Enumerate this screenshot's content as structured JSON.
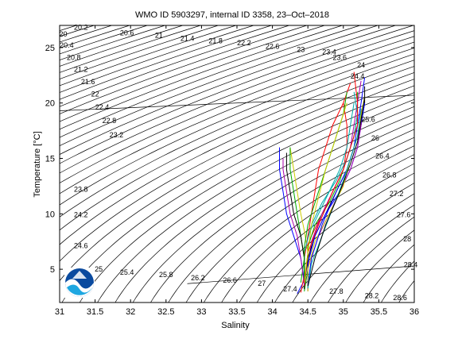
{
  "chart_data": {
    "type": "line",
    "title": "WMO ID 5903297, internal ID 3358, 23–Oct–2018",
    "xlabel": "Salinity",
    "ylabel": "Temperature [°C]",
    "xlim": [
      31,
      36
    ],
    "ylim": [
      2,
      27
    ],
    "xticks": [
      "31",
      "31.5",
      "32",
      "32.5",
      "33",
      "33.5",
      "34",
      "34.5",
      "35",
      "35.5",
      "36"
    ],
    "yticks": [
      "5",
      "10",
      "15",
      "20",
      "25"
    ],
    "grid": false,
    "density_contour_labels": [
      {
        "text": "20",
        "s": 31.05,
        "t": 26.0
      },
      {
        "text": "20.2",
        "s": 31.3,
        "t": 26.6
      },
      {
        "text": "20.6",
        "s": 31.95,
        "t": 26.1
      },
      {
        "text": "21",
        "s": 32.4,
        "t": 25.9
      },
      {
        "text": "21.4",
        "s": 32.8,
        "t": 25.6
      },
      {
        "text": "21.8",
        "s": 33.2,
        "t": 25.4
      },
      {
        "text": "22.2",
        "s": 33.6,
        "t": 25.2
      },
      {
        "text": "22.6",
        "s": 34.0,
        "t": 24.9
      },
      {
        "text": "23",
        "s": 34.4,
        "t": 24.6
      },
      {
        "text": "23.4",
        "s": 34.8,
        "t": 24.4
      },
      {
        "text": "23.6",
        "s": 34.95,
        "t": 23.9
      },
      {
        "text": "24",
        "s": 35.25,
        "t": 23.2
      },
      {
        "text": "24.4",
        "s": 35.2,
        "t": 22.2
      },
      {
        "text": "20.4",
        "s": 31.1,
        "t": 25.0
      },
      {
        "text": "20.8",
        "s": 31.2,
        "t": 23.9
      },
      {
        "text": "21.2",
        "s": 31.3,
        "t": 22.8
      },
      {
        "text": "21.6",
        "s": 31.4,
        "t": 21.7
      },
      {
        "text": "22",
        "s": 31.5,
        "t": 20.6
      },
      {
        "text": "22.4",
        "s": 31.6,
        "t": 19.4
      },
      {
        "text": "22.8",
        "s": 31.7,
        "t": 18.2
      },
      {
        "text": "23.2",
        "s": 31.8,
        "t": 16.9
      },
      {
        "text": "23.8",
        "s": 31.3,
        "t": 12.0
      },
      {
        "text": "24.2",
        "s": 31.3,
        "t": 9.7
      },
      {
        "text": "24.6",
        "s": 31.3,
        "t": 6.9
      },
      {
        "text": "25",
        "s": 31.55,
        "t": 4.8
      },
      {
        "text": "25.4",
        "s": 31.95,
        "t": 4.5
      },
      {
        "text": "25.8",
        "s": 32.5,
        "t": 4.3
      },
      {
        "text": "26.2",
        "s": 32.95,
        "t": 4.0
      },
      {
        "text": "26.6",
        "s": 33.4,
        "t": 3.8
      },
      {
        "text": "27",
        "s": 33.85,
        "t": 3.5
      },
      {
        "text": "27.4",
        "s": 34.25,
        "t": 3.0
      },
      {
        "text": "27.8",
        "s": 34.9,
        "t": 2.8
      },
      {
        "text": "28.2",
        "s": 35.4,
        "t": 2.4
      },
      {
        "text": "28.6",
        "s": 35.8,
        "t": 2.2
      },
      {
        "text": "25.6",
        "s": 35.35,
        "t": 18.3
      },
      {
        "text": "26",
        "s": 35.45,
        "t": 16.6
      },
      {
        "text": "26.4",
        "s": 35.55,
        "t": 15.0
      },
      {
        "text": "26.8",
        "s": 35.65,
        "t": 13.3
      },
      {
        "text": "27.2",
        "s": 35.75,
        "t": 11.6
      },
      {
        "text": "27.6",
        "s": 35.85,
        "t": 9.7
      },
      {
        "text": "28",
        "s": 35.9,
        "t": 7.5
      },
      {
        "text": "28.4",
        "s": 35.95,
        "t": 5.2
      }
    ],
    "series": [
      {
        "color": "#0000ff",
        "points": [
          [
            34.35,
            2.8
          ],
          [
            34.45,
            4
          ],
          [
            34.4,
            6
          ],
          [
            34.3,
            8
          ],
          [
            34.2,
            10
          ],
          [
            34.15,
            12
          ],
          [
            34.1,
            14
          ],
          [
            34.1,
            16
          ]
        ]
      },
      {
        "color": "#ff0000",
        "points": [
          [
            34.4,
            2.9
          ],
          [
            34.45,
            4.5
          ],
          [
            34.45,
            6.5
          ],
          [
            34.55,
            8
          ],
          [
            34.7,
            10
          ],
          [
            34.85,
            12
          ],
          [
            35.0,
            14
          ],
          [
            35.05,
            16
          ],
          [
            35.05,
            18
          ],
          [
            35.0,
            20
          ]
        ]
      },
      {
        "color": "#00aa00",
        "points": [
          [
            34.45,
            3
          ],
          [
            34.5,
            5
          ],
          [
            34.5,
            7
          ],
          [
            34.6,
            9
          ],
          [
            34.8,
            11
          ],
          [
            34.95,
            13
          ],
          [
            35.05,
            15
          ],
          [
            35.15,
            17
          ],
          [
            35.2,
            19
          ],
          [
            35.2,
            21
          ]
        ]
      },
      {
        "color": "#aa00aa",
        "points": [
          [
            34.5,
            3
          ],
          [
            34.5,
            5
          ],
          [
            34.55,
            7.5
          ],
          [
            34.7,
            10
          ],
          [
            34.85,
            12
          ],
          [
            35.0,
            14
          ],
          [
            35.1,
            16
          ],
          [
            35.15,
            18
          ],
          [
            35.2,
            20
          ],
          [
            35.25,
            22
          ]
        ]
      },
      {
        "color": "#00aaaa",
        "points": [
          [
            34.45,
            3.5
          ],
          [
            34.45,
            6
          ],
          [
            34.5,
            8
          ],
          [
            34.65,
            10
          ],
          [
            34.8,
            12
          ],
          [
            34.95,
            14
          ],
          [
            35.05,
            16
          ],
          [
            35.1,
            18
          ],
          [
            35.15,
            20
          ]
        ]
      },
      {
        "color": "#cccc00",
        "points": [
          [
            34.45,
            4
          ],
          [
            34.5,
            6.5
          ],
          [
            34.45,
            8.5
          ],
          [
            34.4,
            10
          ],
          [
            34.35,
            12
          ],
          [
            34.3,
            14
          ],
          [
            34.25,
            16
          ]
        ]
      },
      {
        "color": "#000000",
        "points": [
          [
            34.45,
            3.5
          ],
          [
            34.5,
            6
          ],
          [
            34.6,
            8
          ],
          [
            34.75,
            10
          ],
          [
            34.9,
            12
          ],
          [
            35.05,
            14
          ],
          [
            35.15,
            16
          ],
          [
            35.25,
            18
          ],
          [
            35.3,
            20
          ],
          [
            35.3,
            21.5
          ]
        ]
      },
      {
        "color": "#0000ff",
        "points": [
          [
            34.5,
            3.2
          ],
          [
            34.5,
            5.5
          ],
          [
            34.6,
            8
          ],
          [
            34.75,
            10
          ],
          [
            34.95,
            12
          ],
          [
            35.1,
            14
          ],
          [
            35.2,
            16
          ],
          [
            35.25,
            18
          ],
          [
            35.3,
            20
          ]
        ]
      },
      {
        "color": "#ff0000",
        "points": [
          [
            34.45,
            3.5
          ],
          [
            34.45,
            6
          ],
          [
            34.5,
            8
          ],
          [
            34.55,
            10
          ],
          [
            34.6,
            12
          ],
          [
            34.65,
            14
          ],
          [
            34.75,
            16
          ],
          [
            34.85,
            18
          ],
          [
            35.0,
            20
          ],
          [
            35.1,
            21.8
          ]
        ]
      },
      {
        "color": "#00aa00",
        "points": [
          [
            34.4,
            3.8
          ],
          [
            34.45,
            6
          ],
          [
            34.4,
            8
          ],
          [
            34.35,
            10
          ],
          [
            34.3,
            12
          ],
          [
            34.25,
            14
          ],
          [
            34.25,
            16
          ]
        ]
      },
      {
        "color": "#aa00aa",
        "points": [
          [
            34.5,
            3.5
          ],
          [
            34.55,
            6
          ],
          [
            34.65,
            8
          ],
          [
            34.8,
            10
          ],
          [
            34.95,
            12
          ],
          [
            35.1,
            14
          ],
          [
            35.2,
            16
          ],
          [
            35.25,
            18
          ],
          [
            35.25,
            19.5
          ]
        ]
      },
      {
        "color": "#00aaaa",
        "points": [
          [
            34.45,
            4
          ],
          [
            34.45,
            6.5
          ],
          [
            34.55,
            9
          ],
          [
            34.7,
            11
          ],
          [
            34.9,
            13
          ],
          [
            35.05,
            15
          ],
          [
            35.15,
            17
          ],
          [
            35.2,
            19
          ],
          [
            35.15,
            21
          ]
        ]
      },
      {
        "color": "#cccc00",
        "points": [
          [
            34.5,
            3
          ],
          [
            34.5,
            5
          ],
          [
            34.6,
            7.5
          ],
          [
            34.8,
            10
          ],
          [
            35.0,
            12.5
          ],
          [
            35.1,
            15
          ],
          [
            35.2,
            17
          ],
          [
            35.25,
            19
          ],
          [
            35.3,
            20.5
          ]
        ]
      },
      {
        "color": "#000000",
        "points": [
          [
            34.45,
            3.2
          ],
          [
            34.45,
            6
          ],
          [
            34.4,
            8
          ],
          [
            34.3,
            10
          ],
          [
            34.25,
            12
          ],
          [
            34.2,
            14
          ],
          [
            34.2,
            15.5
          ]
        ]
      },
      {
        "color": "#0000ff",
        "points": [
          [
            34.5,
            3.5
          ],
          [
            34.55,
            6
          ],
          [
            34.7,
            9
          ],
          [
            34.9,
            12
          ],
          [
            35.05,
            14
          ],
          [
            35.15,
            16
          ],
          [
            35.2,
            18
          ],
          [
            35.25,
            20
          ],
          [
            35.3,
            22.3
          ]
        ]
      },
      {
        "color": "#ff0000",
        "points": [
          [
            34.45,
            3.5
          ],
          [
            34.5,
            6.5
          ],
          [
            34.65,
            9
          ],
          [
            34.85,
            12
          ],
          [
            35.0,
            14
          ],
          [
            35.1,
            16
          ],
          [
            35.2,
            18
          ],
          [
            35.2,
            20
          ],
          [
            35.15,
            22.8
          ]
        ]
      },
      {
        "color": "#00aa00",
        "points": [
          [
            34.45,
            4
          ],
          [
            34.45,
            7
          ],
          [
            34.5,
            9
          ],
          [
            34.6,
            11
          ],
          [
            34.7,
            13
          ],
          [
            34.8,
            15
          ],
          [
            34.9,
            17
          ],
          [
            35.0,
            19
          ],
          [
            35.05,
            21
          ]
        ]
      },
      {
        "color": "#aa00aa",
        "points": [
          [
            34.45,
            3.6
          ],
          [
            34.4,
            6
          ],
          [
            34.35,
            8
          ],
          [
            34.25,
            10
          ],
          [
            34.2,
            12
          ],
          [
            34.15,
            14
          ],
          [
            34.15,
            15
          ]
        ]
      },
      {
        "color": "#00aaaa",
        "points": [
          [
            34.5,
            3.3
          ],
          [
            34.55,
            5.5
          ],
          [
            34.7,
            8
          ],
          [
            34.85,
            10.5
          ],
          [
            35.0,
            13
          ],
          [
            35.1,
            15
          ],
          [
            35.2,
            17
          ],
          [
            35.25,
            19.5
          ]
        ]
      },
      {
        "color": "#cccc00",
        "points": [
          [
            34.45,
            3.8
          ],
          [
            34.5,
            6.5
          ],
          [
            34.55,
            9
          ],
          [
            34.65,
            11.5
          ],
          [
            34.75,
            14
          ],
          [
            34.85,
            16
          ],
          [
            34.95,
            18
          ],
          [
            35.05,
            20
          ]
        ]
      },
      {
        "color": "#000000",
        "points": [
          [
            34.5,
            3.5
          ],
          [
            34.6,
            6
          ],
          [
            34.75,
            9
          ],
          [
            34.95,
            12
          ],
          [
            35.1,
            14.5
          ],
          [
            35.2,
            16.5
          ],
          [
            35.25,
            18.5
          ],
          [
            35.3,
            20.5
          ]
        ]
      }
    ]
  }
}
